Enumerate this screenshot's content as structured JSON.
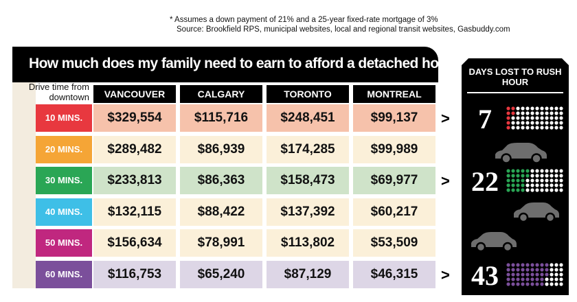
{
  "footnote": {
    "line1": "* Assumes a down payment of 21% and a 25-year fixed-rate mortgage of 3%",
    "line2": "Source: Brookfield RPS, municipal websites, local and regional transit websites, Gasbuddy.com"
  },
  "title": "How much does my family need to earn to afford a detached home*",
  "drive_time_label": "Drive time from downtown",
  "columns": [
    "VANCOUVER",
    "CALGARY",
    "TORONTO",
    "MONTREAL"
  ],
  "rows": [
    {
      "label": "10 MINS.",
      "label_color": "#e8383f",
      "row_bg": "#f6c2ab",
      "values": [
        "$329,554",
        "$115,716",
        "$248,451",
        "$99,137"
      ]
    },
    {
      "label": "20 MINS.",
      "label_color": "#f5a536",
      "row_bg": "#fbf0d9",
      "values": [
        "$289,482",
        "$86,939",
        "$174,285",
        "$99,989"
      ]
    },
    {
      "label": "30 MINS.",
      "label_color": "#2aa655",
      "row_bg": "#cfe3c9",
      "values": [
        "$233,813",
        "$86,363",
        "$158,473",
        "$69,977"
      ]
    },
    {
      "label": "40 MINS.",
      "label_color": "#3ebfe7",
      "row_bg": "#fbf0d9",
      "values": [
        "$132,115",
        "$88,422",
        "$137,392",
        "$60,217"
      ]
    },
    {
      "label": "50 MINS.",
      "label_color": "#c0277f",
      "row_bg": "#fbf0d9",
      "values": [
        "$156,634",
        "$78,991",
        "$113,802",
        "$53,509"
      ]
    },
    {
      "label": "60 MINS.",
      "label_color": "#7b4f9b",
      "row_bg": "#ddd6e6",
      "values": [
        "$116,753",
        "$65,240",
        "$87,129",
        "$46,315"
      ]
    }
  ],
  "side_panel": {
    "title": "DAYS LOST TO RUSH HOUR",
    "entries": [
      {
        "days": "7",
        "days_value": 7,
        "dot_color": "#e8383f",
        "row_index": 0
      },
      {
        "days": "22",
        "days_value": 22,
        "dot_color": "#2aa655",
        "row_index": 2
      },
      {
        "days": "43",
        "days_value": 43,
        "dot_color": "#7b4f9b",
        "row_index": 5
      }
    ],
    "dots_total": 60,
    "dot_off_color": "#ffffff",
    "car_color": "#6e6e6e"
  },
  "icons": {
    "arrow": "chevron-right-icon",
    "car": "car-icon"
  },
  "arrow_glyph": ">"
}
